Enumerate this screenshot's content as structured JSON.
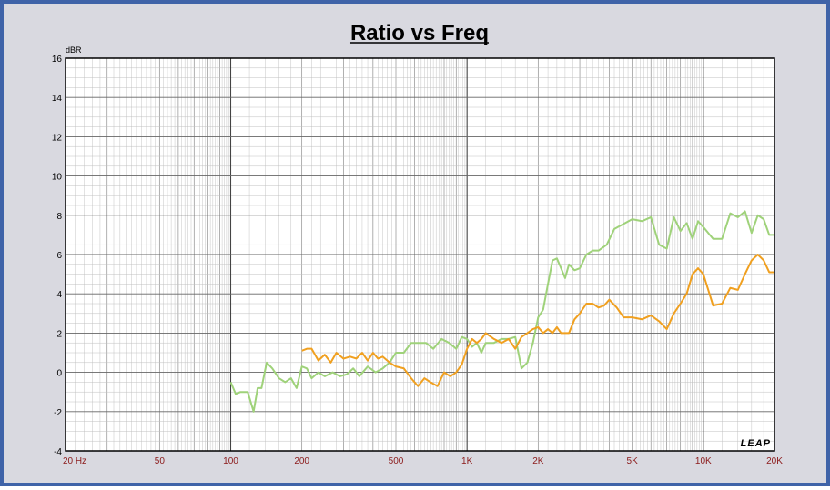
{
  "chart_data": {
    "type": "line",
    "title": "Ratio vs Freq",
    "ylabel": "dBR",
    "xscale": "log",
    "xlim": [
      20,
      20000
    ],
    "ylim": [
      -4,
      16
    ],
    "yticks": [
      "16",
      "14",
      "12",
      "10",
      "8",
      "6",
      "4",
      "2",
      "0",
      "-2",
      "-4"
    ],
    "xticks": [
      {
        "value": 20,
        "label": "20  Hz"
      },
      {
        "value": 50,
        "label": "50"
      },
      {
        "value": 100,
        "label": "100"
      },
      {
        "value": 200,
        "label": "200"
      },
      {
        "value": 500,
        "label": "500"
      },
      {
        "value": 1000,
        "label": "1K"
      },
      {
        "value": 2000,
        "label": "2K"
      },
      {
        "value": 5000,
        "label": "5K"
      },
      {
        "value": 10000,
        "label": "10K"
      },
      {
        "value": 20000,
        "label": "20K"
      }
    ],
    "grid": true,
    "logo": "LEAP",
    "series": [
      {
        "color": "#9fd27a",
        "x": [
          100,
          105,
          110,
          118,
          125,
          130,
          135,
          142,
          150,
          160,
          170,
          180,
          190,
          200,
          210,
          220,
          235,
          250,
          270,
          290,
          310,
          330,
          350,
          380,
          410,
          440,
          470,
          500,
          540,
          580,
          620,
          670,
          720,
          780,
          840,
          900,
          950,
          1000,
          1050,
          1100,
          1150,
          1200,
          1300,
          1400,
          1500,
          1600,
          1700,
          1800,
          1900,
          2000,
          2100,
          2200,
          2300,
          2400,
          2500,
          2600,
          2700,
          2850,
          3000,
          3200,
          3400,
          3600,
          3900,
          4200,
          4500,
          5000,
          5500,
          6000,
          6500,
          7000,
          7500,
          8000,
          8500,
          9000,
          9500,
          10000,
          11000,
          12000,
          13000,
          14000,
          15000,
          16000,
          17000,
          18000,
          19000,
          20000
        ],
        "y": [
          -0.5,
          -1.1,
          -1.0,
          -1.0,
          -2.0,
          -0.8,
          -0.8,
          0.5,
          0.2,
          -0.3,
          -0.5,
          -0.3,
          -0.8,
          0.3,
          0.2,
          -0.3,
          0.0,
          -0.2,
          0.0,
          -0.2,
          -0.1,
          0.2,
          -0.2,
          0.3,
          0.0,
          0.2,
          0.5,
          1.0,
          1.0,
          1.5,
          1.5,
          1.5,
          1.2,
          1.7,
          1.5,
          1.2,
          1.8,
          1.7,
          1.3,
          1.5,
          1.0,
          1.5,
          1.5,
          1.7,
          1.7,
          1.8,
          0.2,
          0.5,
          1.5,
          2.8,
          3.2,
          4.5,
          5.7,
          5.8,
          5.3,
          4.8,
          5.5,
          5.2,
          5.3,
          6.0,
          6.2,
          6.2,
          6.5,
          7.3,
          7.5,
          7.8,
          7.7,
          7.9,
          6.5,
          6.3,
          7.9,
          7.2,
          7.6,
          6.8,
          7.7,
          7.4,
          6.8,
          6.8,
          8.1,
          7.9,
          8.2,
          7.1,
          8.0,
          7.8,
          7.0,
          7.0
        ]
      },
      {
        "color": "#f0a020",
        "x": [
          200,
          210,
          220,
          235,
          250,
          265,
          280,
          300,
          320,
          340,
          360,
          380,
          400,
          420,
          440,
          470,
          500,
          540,
          580,
          620,
          660,
          700,
          750,
          800,
          850,
          900,
          950,
          1000,
          1050,
          1100,
          1150,
          1200,
          1300,
          1400,
          1500,
          1600,
          1700,
          1800,
          1900,
          2000,
          2100,
          2200,
          2300,
          2400,
          2500,
          2600,
          2700,
          2850,
          3000,
          3200,
          3400,
          3600,
          3800,
          4000,
          4300,
          4600,
          5000,
          5500,
          6000,
          6500,
          7000,
          7500,
          8000,
          8500,
          9000,
          9500,
          10000,
          11000,
          12000,
          13000,
          14000,
          15000,
          16000,
          17000,
          18000,
          19000,
          20000
        ],
        "y": [
          1.1,
          1.2,
          1.2,
          0.6,
          0.9,
          0.5,
          1.0,
          0.7,
          0.8,
          0.7,
          1.0,
          0.6,
          1.0,
          0.7,
          0.8,
          0.5,
          0.3,
          0.2,
          -0.3,
          -0.7,
          -0.3,
          -0.5,
          -0.7,
          0.0,
          -0.2,
          0.0,
          0.4,
          1.2,
          1.7,
          1.5,
          1.7,
          2.0,
          1.7,
          1.5,
          1.7,
          1.2,
          1.8,
          2.0,
          2.2,
          2.3,
          2.0,
          2.2,
          2.0,
          2.3,
          2.0,
          2.0,
          2.0,
          2.7,
          3.0,
          3.5,
          3.5,
          3.3,
          3.4,
          3.7,
          3.3,
          2.8,
          2.8,
          2.7,
          2.9,
          2.6,
          2.2,
          3.0,
          3.5,
          4.0,
          5.0,
          5.3,
          5.0,
          3.4,
          3.5,
          4.3,
          4.2,
          5.0,
          5.7,
          6.0,
          5.7,
          5.1,
          5.1
        ]
      }
    ]
  }
}
